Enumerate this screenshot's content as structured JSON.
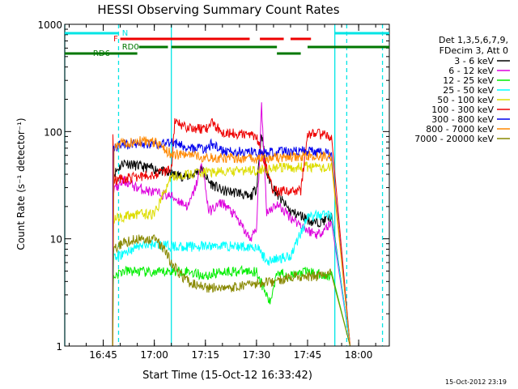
{
  "chart_data": {
    "type": "line",
    "title": "HESSI Observing Summary Count Rates",
    "xlabel": "Start Time (15-Oct-12 16:33:42)",
    "ylabel": "Count Rate (s⁻¹ detector⁻¹)",
    "yscale": "log",
    "xlim": [
      "16:33:42",
      "18:09:00"
    ],
    "ylim": [
      1,
      1000
    ],
    "x_ticks": [
      "16:45",
      "17:00",
      "17:15",
      "17:30",
      "17:45",
      "18:00"
    ],
    "y_ticks": [
      "1",
      "10",
      "100",
      "1000"
    ],
    "timestamp": "15-Oct-2012 23:19",
    "legend_header": [
      "Det 1,3,5,6,7,9,",
      "FDecim 3, Att 0"
    ],
    "flags": [
      {
        "label": "N",
        "color": "#00e5e5",
        "segments": [
          [
            "16:33:42",
            "16:49:30"
          ],
          [
            "17:53:00",
            "18:09:00"
          ]
        ]
      },
      {
        "label": "F",
        "color": "#ee0000",
        "segments": [
          [
            "16:50:00",
            "17:28:00"
          ],
          [
            "17:31:00",
            "17:38:00"
          ],
          [
            "17:40:00",
            "17:46:00"
          ]
        ]
      },
      {
        "label": "RD0",
        "color": "#007700",
        "segments": [
          [
            "16:55:30",
            "17:04:00"
          ],
          [
            "17:05:00",
            "17:36:00"
          ],
          [
            "17:45:00",
            "18:09:00"
          ]
        ]
      },
      {
        "label": "RD6",
        "color": "#007700",
        "segments": [
          [
            "16:33:42",
            "16:55:00"
          ],
          [
            "17:36:00",
            "17:43:00"
          ]
        ]
      }
    ],
    "vlines": [
      {
        "x": "16:33:42",
        "color": "#00e5e5",
        "style": "solid"
      },
      {
        "x": "16:49:30",
        "color": "#00e5e5",
        "style": "dashed"
      },
      {
        "x": "17:05:00",
        "color": "#00e5e5",
        "style": "solid"
      },
      {
        "x": "17:53:00",
        "color": "#00e5e5",
        "style": "solid"
      },
      {
        "x": "17:56:30",
        "color": "#00e5e5",
        "style": "dashed"
      },
      {
        "x": "18:07:00",
        "color": "#00e5e5",
        "style": "dashed"
      }
    ],
    "data_start": "16:47:45",
    "data_end": "17:57:30",
    "series": [
      {
        "name": "3 - 6 keV",
        "color": "#000000",
        "x": [
          "16:48:00",
          "16:51:00",
          "16:55:00",
          "17:00:00",
          "17:05:00",
          "17:10:00",
          "17:14:00",
          "17:16:00",
          "17:20:00",
          "17:25:00",
          "17:28:00",
          "17:30:00",
          "17:31:30",
          "17:33:00",
          "17:36:00",
          "17:40:00",
          "17:44:00",
          "17:47:00",
          "17:50:00",
          "17:52:00"
        ],
        "values": [
          40,
          52,
          48,
          45,
          40,
          38,
          45,
          34,
          28,
          27,
          24,
          30,
          100,
          40,
          26,
          18,
          16,
          14,
          15,
          16
        ]
      },
      {
        "name": "6 - 12 keV",
        "color": "#dd00dd",
        "x": [
          "16:48:00",
          "16:51:00",
          "16:55:00",
          "17:00:00",
          "17:05:00",
          "17:10:00",
          "17:12:00",
          "17:14:00",
          "17:16:00",
          "17:20:00",
          "17:24:00",
          "17:28:00",
          "17:30:00",
          "17:31:30",
          "17:33:00",
          "17:36:00",
          "17:40:00",
          "17:45:00",
          "17:48:00",
          "17:52:00"
        ],
        "values": [
          28,
          35,
          30,
          27,
          25,
          20,
          30,
          50,
          18,
          22,
          16,
          10,
          12,
          170,
          18,
          21,
          16,
          12,
          11,
          14
        ]
      },
      {
        "name": "12 - 25 keV",
        "color": "#00ee00",
        "x": [
          "16:48:00",
          "16:51:00",
          "16:55:00",
          "17:00:00",
          "17:05:00",
          "17:10:00",
          "17:15:00",
          "17:20:00",
          "17:25:00",
          "17:30:00",
          "17:32:00",
          "17:34:00",
          "17:36:00",
          "17:40:00",
          "17:45:00",
          "17:50:00",
          "17:52:00"
        ],
        "values": [
          4.5,
          5,
          5,
          4.8,
          5,
          5,
          4.5,
          5,
          5,
          5,
          3.5,
          2.5,
          5,
          4.5,
          5,
          4.5,
          4.7
        ]
      },
      {
        "name": "25 - 50 keV",
        "color": "#00ffff",
        "x": [
          "16:48:00",
          "16:55:00",
          "17:00:00",
          "17:05:00",
          "17:10:00",
          "17:15:00",
          "17:20:00",
          "17:25:00",
          "17:30:00",
          "17:33:00",
          "17:36:00",
          "17:40:00",
          "17:45:00",
          "17:50:00",
          "17:52:00"
        ],
        "values": [
          6.5,
          8.5,
          9,
          8.5,
          8.5,
          8.5,
          8.7,
          8.5,
          8.5,
          6.2,
          6.5,
          7,
          16,
          17,
          17
        ]
      },
      {
        "name": "50 - 100 keV",
        "color": "#dddd00",
        "x": [
          "16:48:00",
          "16:50:00",
          "16:55:00",
          "17:00:00",
          "17:05:00",
          "17:10:00",
          "17:15:00",
          "17:20:00",
          "17:25:00",
          "17:30:00",
          "17:35:00",
          "17:40:00",
          "17:45:00",
          "17:50:00",
          "17:52:00"
        ],
        "values": [
          15,
          16,
          17,
          17,
          38,
          40,
          42,
          42,
          43,
          44,
          46,
          46,
          47,
          46,
          46
        ]
      },
      {
        "name": "100 - 300 keV",
        "color": "#ee0000",
        "x": [
          "16:47:50",
          "16:48:10",
          "16:50:00",
          "16:55:00",
          "17:00:00",
          "17:05:00",
          "17:06:00",
          "17:10:00",
          "17:15:00",
          "17:17:00",
          "17:20:00",
          "17:25:00",
          "17:30:00",
          "17:35:00",
          "17:40:00",
          "17:43:00",
          "17:45:00",
          "17:48:00",
          "17:52:00"
        ],
        "values": [
          105,
          35,
          36,
          38,
          40,
          45,
          120,
          110,
          105,
          120,
          100,
          95,
          92,
          28,
          28,
          28,
          95,
          96,
          90
        ]
      },
      {
        "name": "300 - 800 keV",
        "color": "#0000ee",
        "x": [
          "16:48:00",
          "16:50:00",
          "16:55:00",
          "17:00:00",
          "17:05:00",
          "17:10:00",
          "17:15:00",
          "17:17:00",
          "17:20:00",
          "17:25:00",
          "17:30:00",
          "17:35:00",
          "17:40:00",
          "17:45:00",
          "17:50:00",
          "17:52:00"
        ],
        "values": [
          70,
          75,
          78,
          76,
          80,
          72,
          68,
          78,
          65,
          65,
          63,
          64,
          66,
          66,
          63,
          62
        ]
      },
      {
        "name": "800 - 7000 keV",
        "color": "#ff8800",
        "x": [
          "16:47:50",
          "16:48:10",
          "16:50:00",
          "16:55:00",
          "17:00:00",
          "17:05:00",
          "17:10:00",
          "17:15:00",
          "17:20:00",
          "17:25:00",
          "17:30:00",
          "17:35:00",
          "17:40:00",
          "17:45:00",
          "17:50:00",
          "17:52:00"
        ],
        "values": [
          1,
          75,
          78,
          82,
          80,
          62,
          60,
          58,
          57,
          56,
          56,
          57,
          58,
          60,
          59,
          58
        ]
      },
      {
        "name": "7000 - 20000 keV",
        "color": "#888800",
        "x": [
          "16:48:00",
          "16:50:00",
          "16:55:00",
          "17:00:00",
          "17:03:00",
          "17:05:00",
          "17:08:00",
          "17:10:00",
          "17:15:00",
          "17:20:00",
          "17:25:00",
          "17:30:00",
          "17:35:00",
          "17:40:00",
          "17:45:00",
          "17:50:00",
          "17:52:00"
        ],
        "values": [
          8,
          9,
          10,
          10,
          8,
          6,
          4.5,
          4,
          3.5,
          3.5,
          3.6,
          3.8,
          4,
          4.5,
          4.5,
          4.5,
          4.8
        ]
      }
    ]
  }
}
